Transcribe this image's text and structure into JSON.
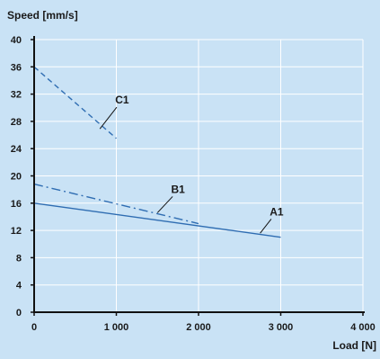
{
  "chart_data": {
    "type": "line",
    "ylabel": "Speed [mm/s]",
    "xlabel": "Load [N]",
    "xlim": [
      0,
      4000
    ],
    "ylim": [
      0,
      40
    ],
    "x_ticks": [
      0,
      1000,
      2000,
      3000,
      4000
    ],
    "x_tick_labels": [
      "0",
      "1 000",
      "2 000",
      "3 000",
      "4 000"
    ],
    "y_ticks": [
      0,
      4,
      8,
      12,
      16,
      20,
      24,
      28,
      32,
      36,
      40
    ],
    "y_tick_labels": [
      "0",
      "4",
      "8",
      "12",
      "16",
      "20",
      "24",
      "28",
      "32",
      "36",
      "40"
    ],
    "grid": true,
    "legend": "none (inline labels)",
    "series": [
      {
        "name": "A1",
        "style": "solid",
        "x": [
          0,
          3000
        ],
        "y": [
          16,
          11
        ],
        "label_point": [
          2750,
          11.6
        ],
        "label_text_at": [
          2950,
          14.2
        ]
      },
      {
        "name": "B1",
        "style": "dashdot",
        "x": [
          0,
          2000
        ],
        "y": [
          18.8,
          13
        ],
        "label_point": [
          1500,
          14.6
        ],
        "label_text_at": [
          1750,
          17.5
        ]
      },
      {
        "name": "C1",
        "style": "dashed",
        "x": [
          0,
          1000
        ],
        "y": [
          36,
          25.5
        ],
        "label_point": [
          800,
          26.9
        ],
        "label_text_at": [
          1070,
          30.6
        ]
      }
    ],
    "colors": {
      "background": "#c9e2f5",
      "grid": "#ffffff",
      "axis": "#111111",
      "line": "#2f6db2",
      "text": "#1a1a1a"
    }
  }
}
